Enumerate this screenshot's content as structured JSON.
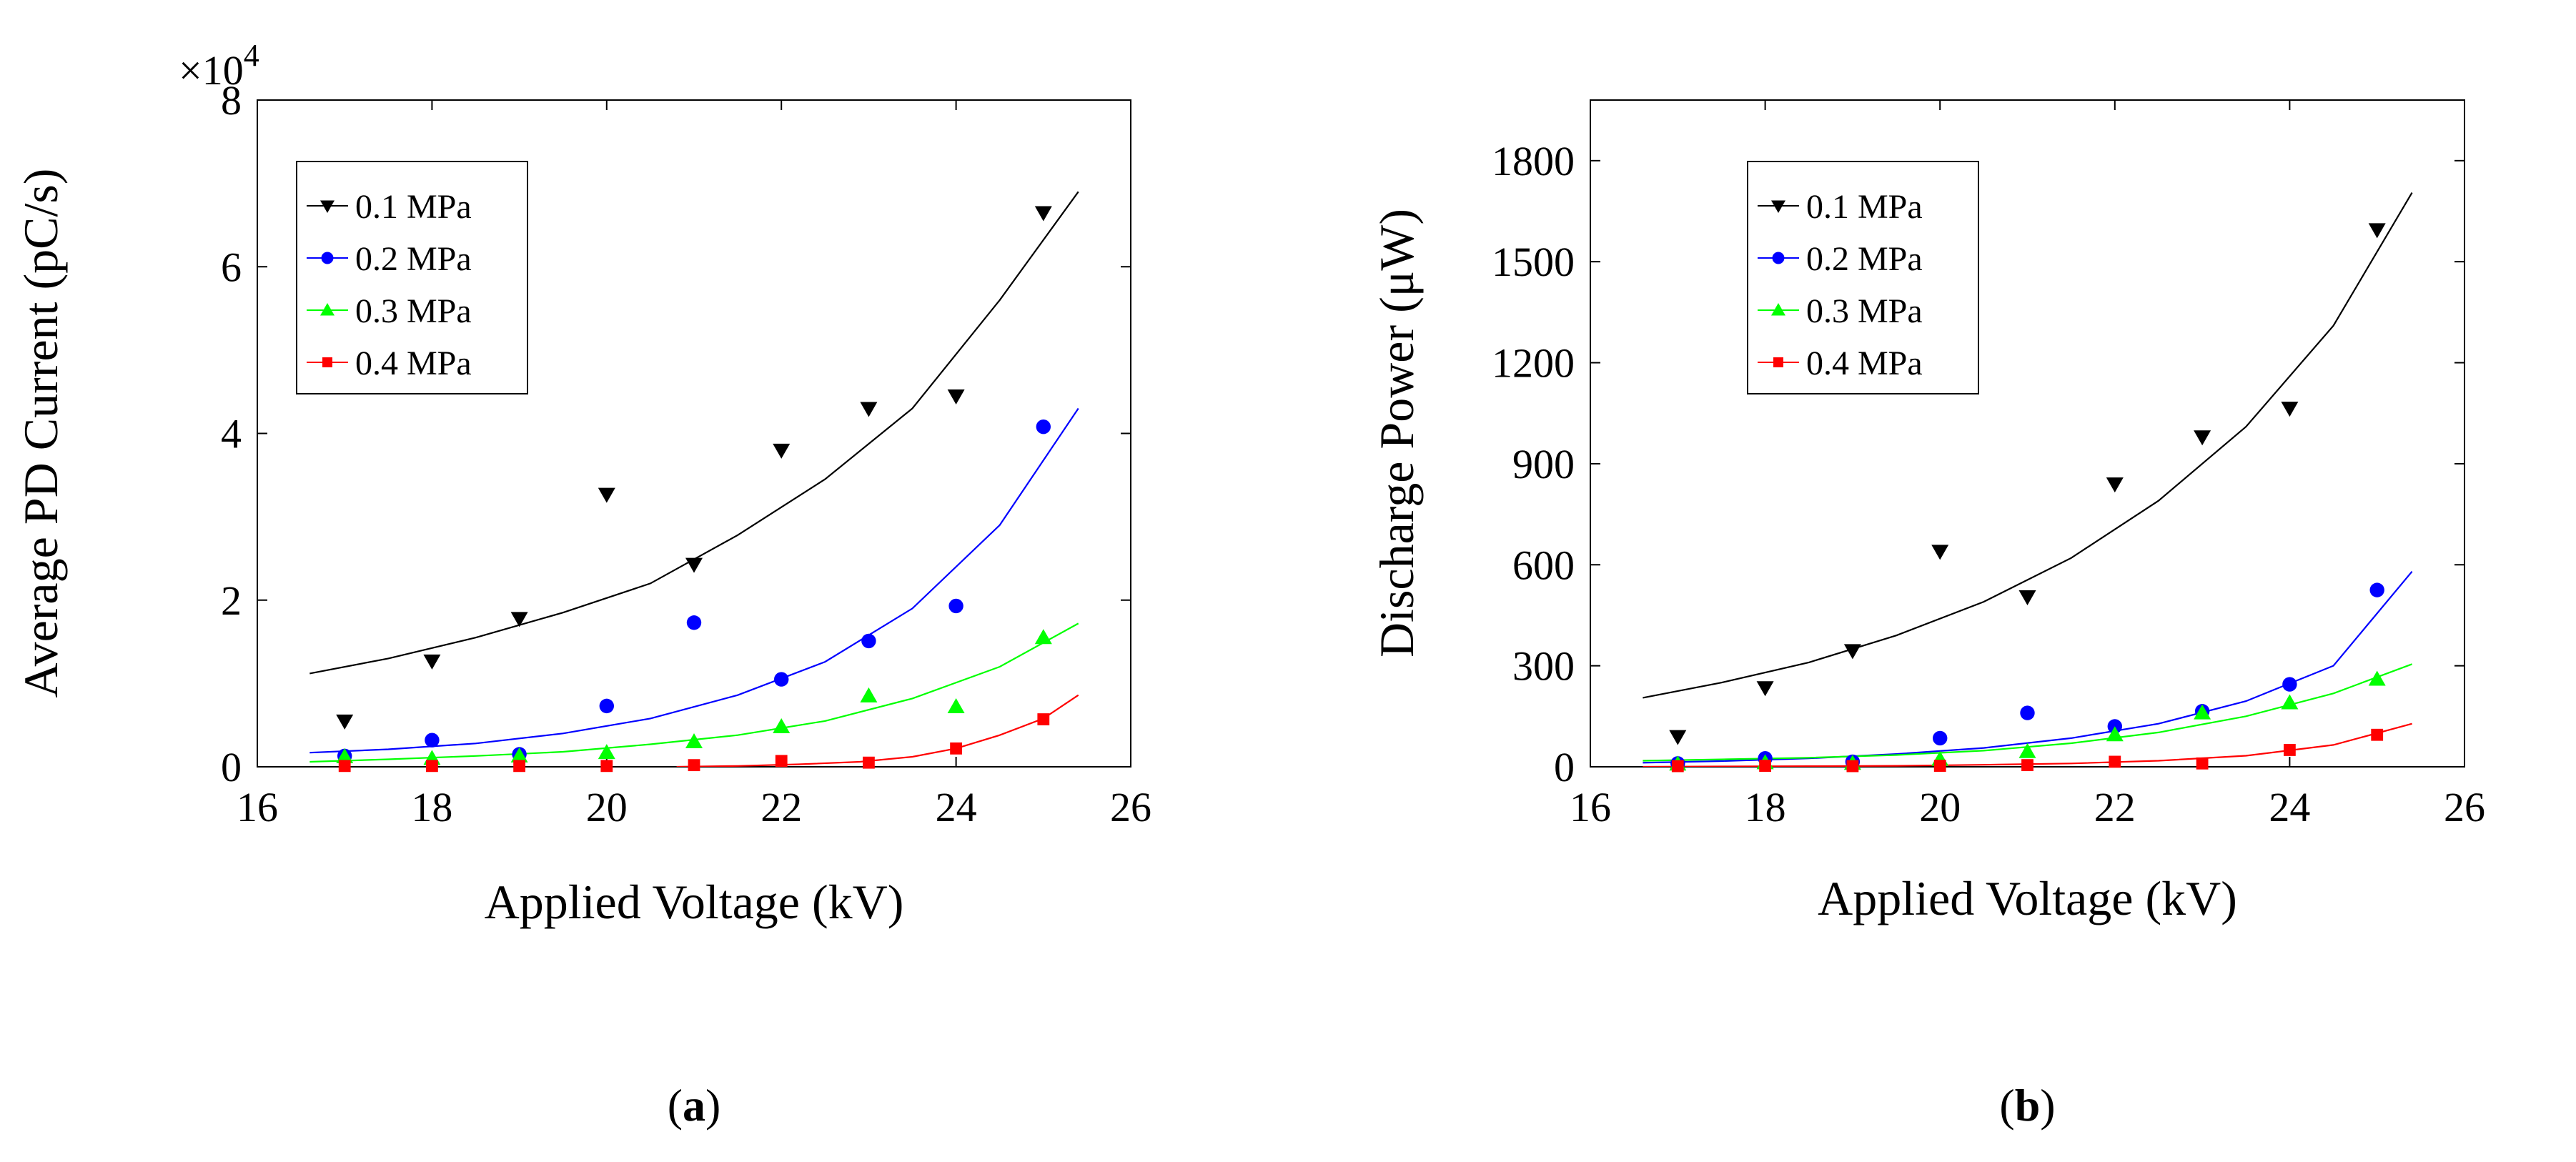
{
  "chart_data": [
    {
      "type": "scatter",
      "panel_label": "a",
      "xlabel": "Applied Voltage (kV)",
      "ylabel": "Average PD Current  (pC/s)",
      "y_exponent_base": "×10",
      "y_exponent_power": "4",
      "xlim": [
        16,
        26
      ],
      "ylim": [
        0,
        8
      ],
      "xticks": [
        16,
        18,
        20,
        22,
        24,
        26
      ],
      "yticks": [
        0,
        2,
        4,
        6,
        8
      ],
      "x": [
        17,
        18,
        19,
        20,
        21,
        22,
        23,
        24,
        25
      ],
      "legend_location": "upper-left",
      "series": [
        {
          "name": "0.1 MPa",
          "color": "#000000",
          "marker": "triangle-down",
          "values": [
            0.55,
            1.27,
            1.78,
            3.27,
            2.43,
            3.8,
            4.3,
            4.45,
            6.65
          ],
          "fit": {
            "x": [
              16.6,
              17.5,
              18.5,
              19.5,
              20.5,
              21.5,
              22.5,
              23.5,
              24.5,
              25.4
            ],
            "y": [
              1.12,
              1.3,
              1.55,
              1.85,
              2.2,
              2.78,
              3.45,
              4.3,
              5.6,
              6.9
            ]
          }
        },
        {
          "name": "0.2 MPa",
          "color": "#0000ff",
          "marker": "circle",
          "values": [
            0.13,
            0.32,
            0.15,
            0.73,
            1.73,
            1.05,
            1.51,
            1.93,
            4.08
          ],
          "fit": {
            "x": [
              16.6,
              17.5,
              18.5,
              19.5,
              20.5,
              21.5,
              22.5,
              23.5,
              24.5,
              25.4
            ],
            "y": [
              0.17,
              0.21,
              0.28,
              0.4,
              0.58,
              0.86,
              1.26,
              1.9,
              2.9,
              4.3
            ]
          }
        },
        {
          "name": "0.3 MPa",
          "color": "#00ff00",
          "marker": "triangle-up",
          "values": [
            0.12,
            0.1,
            0.13,
            0.17,
            0.3,
            0.48,
            0.85,
            0.72,
            1.55
          ],
          "fit": {
            "x": [
              16.6,
              17.5,
              18.5,
              19.5,
              20.5,
              21.5,
              22.5,
              23.5,
              24.5,
              25.4
            ],
            "y": [
              0.06,
              0.09,
              0.13,
              0.18,
              0.27,
              0.38,
              0.55,
              0.82,
              1.2,
              1.72
            ]
          }
        },
        {
          "name": "0.4 MPa",
          "color": "#ff0000",
          "marker": "square",
          "values": [
            0.01,
            0.01,
            0.01,
            0.01,
            0.02,
            0.07,
            0.05,
            0.22,
            0.57
          ],
          "fit": {
            "x": [
              20.8,
              21.5,
              22.2,
              22.9,
              23.5,
              24.0,
              24.5,
              25.0,
              25.4
            ],
            "y": [
              0.0,
              0.01,
              0.03,
              0.06,
              0.12,
              0.22,
              0.38,
              0.58,
              0.86
            ]
          }
        }
      ]
    },
    {
      "type": "scatter",
      "panel_label": "b",
      "xlabel": "Applied Voltage (kV)",
      "ylabel": "Discharge Power (μW)",
      "xlim": [
        16,
        26
      ],
      "ylim": [
        0,
        1980
      ],
      "xticks": [
        16,
        18,
        20,
        22,
        24,
        26
      ],
      "yticks": [
        0,
        300,
        600,
        900,
        1200,
        1500,
        1800
      ],
      "x": [
        17,
        18,
        19,
        20,
        21,
        22,
        23,
        24,
        25
      ],
      "legend_location": "upper-left",
      "series": [
        {
          "name": "0.1 MPa",
          "color": "#000000",
          "marker": "triangle-down",
          "values": [
            90,
            235,
            345,
            640,
            505,
            840,
            980,
            1065,
            1595
          ],
          "fit": {
            "x": [
              16.6,
              17.5,
              18.5,
              19.5,
              20.5,
              21.5,
              22.5,
              23.5,
              24.5,
              25.4
            ],
            "y": [
              205,
              250,
              310,
              390,
              490,
              620,
              790,
              1010,
              1310,
              1705
            ]
          }
        },
        {
          "name": "0.2 MPa",
          "color": "#0000ff",
          "marker": "circle",
          "values": [
            10,
            25,
            15,
            85,
            160,
            120,
            165,
            245,
            525
          ],
          "fit": {
            "x": [
              16.6,
              17.5,
              18.5,
              19.5,
              20.5,
              21.5,
              22.5,
              23.5,
              24.5,
              25.4
            ],
            "y": [
              12,
              17,
              25,
              38,
              56,
              85,
              128,
              195,
              300,
              580
            ]
          }
        },
        {
          "name": "0.3 MPa",
          "color": "#00ff00",
          "marker": "triangle-up",
          "values": [
            8,
            12,
            10,
            22,
            45,
            95,
            160,
            190,
            260
          ],
          "fit": {
            "x": [
              16.6,
              17.5,
              18.5,
              19.5,
              20.5,
              21.5,
              22.5,
              23.5,
              24.5,
              25.4
            ],
            "y": [
              18,
              22,
              27,
              35,
              48,
              70,
              102,
              150,
              218,
              305
            ]
          }
        },
        {
          "name": "0.4 MPa",
          "color": "#ff0000",
          "marker": "square",
          "values": [
            2,
            3,
            2,
            3,
            5,
            15,
            10,
            50,
            95
          ],
          "fit": {
            "x": [
              16.6,
              17.5,
              18.5,
              19.5,
              20.5,
              21.5,
              22.5,
              23.5,
              24.5,
              25.4
            ],
            "y": [
              0,
              1,
              2,
              3,
              6,
              10,
              18,
              33,
              65,
              128
            ]
          }
        }
      ]
    }
  ]
}
